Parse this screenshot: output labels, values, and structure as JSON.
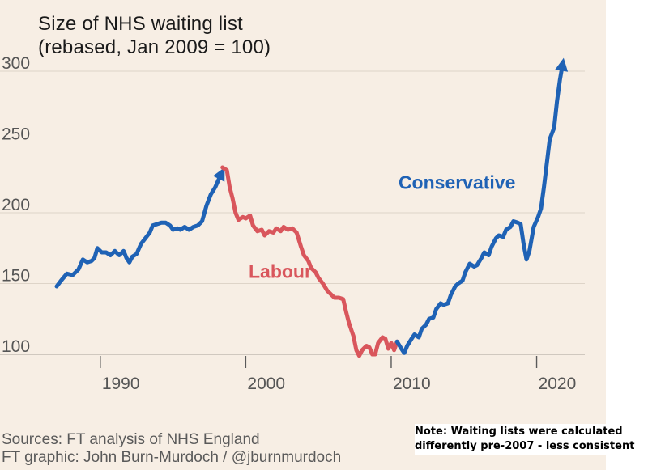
{
  "chart_data": {
    "type": "line",
    "title": "Size of NHS waiting list",
    "subtitle": "(rebased, Jan 2009 = 100)",
    "xlabel": "",
    "ylabel": "",
    "xlim": [
      1986,
      2023.2
    ],
    "ylim": [
      95,
      310
    ],
    "y_ticks": [
      100,
      150,
      200,
      250,
      300
    ],
    "x_ticks": [
      1990,
      2000,
      2010,
      2020
    ],
    "grid": {
      "horizontal": true,
      "vertical": false
    },
    "series": [
      {
        "name": "Conservative",
        "color": "#1f62b5",
        "arrow_at_end": true,
        "points": [
          [
            1987.0,
            148
          ],
          [
            1987.3,
            152
          ],
          [
            1987.7,
            157
          ],
          [
            1988.1,
            156
          ],
          [
            1988.5,
            160
          ],
          [
            1988.8,
            167
          ],
          [
            1989.1,
            165
          ],
          [
            1989.4,
            166
          ],
          [
            1989.6,
            168
          ],
          [
            1989.8,
            175
          ],
          [
            1990.1,
            172
          ],
          [
            1990.4,
            172
          ],
          [
            1990.7,
            170
          ],
          [
            1991.0,
            173
          ],
          [
            1991.3,
            170
          ],
          [
            1991.6,
            173
          ],
          [
            1991.8,
            168
          ],
          [
            1992.0,
            165
          ],
          [
            1992.2,
            169
          ],
          [
            1992.5,
            171
          ],
          [
            1992.8,
            178
          ],
          [
            1993.1,
            182
          ],
          [
            1993.4,
            186
          ],
          [
            1993.6,
            191
          ],
          [
            1993.9,
            192
          ],
          [
            1994.2,
            193
          ],
          [
            1994.5,
            193
          ],
          [
            1994.8,
            191
          ],
          [
            1995.0,
            188
          ],
          [
            1995.3,
            189
          ],
          [
            1995.5,
            188
          ],
          [
            1995.8,
            190
          ],
          [
            1996.1,
            188
          ],
          [
            1996.4,
            190
          ],
          [
            1996.7,
            191
          ],
          [
            1997.0,
            194
          ],
          [
            1997.3,
            205
          ],
          [
            1997.6,
            213
          ],
          [
            1997.9,
            218
          ],
          [
            1998.2,
            225
          ],
          [
            1998.4,
            229
          ]
        ]
      },
      {
        "name": "Labour",
        "color": "#d9565c",
        "points": [
          [
            1998.4,
            232
          ],
          [
            1998.7,
            230
          ],
          [
            1998.9,
            218
          ],
          [
            1999.1,
            210
          ],
          [
            1999.3,
            200
          ],
          [
            1999.5,
            195
          ],
          [
            1999.8,
            197
          ],
          [
            2000.0,
            196
          ],
          [
            2000.3,
            198
          ],
          [
            2000.5,
            191
          ],
          [
            2000.8,
            187
          ],
          [
            2001.1,
            188
          ],
          [
            2001.3,
            184
          ],
          [
            2001.6,
            187
          ],
          [
            2001.9,
            186
          ],
          [
            2002.1,
            189
          ],
          [
            2002.4,
            187
          ],
          [
            2002.6,
            190
          ],
          [
            2002.9,
            188
          ],
          [
            2003.2,
            189
          ],
          [
            2003.5,
            186
          ],
          [
            2003.8,
            176
          ],
          [
            2004.0,
            170
          ],
          [
            2004.3,
            166
          ],
          [
            2004.5,
            161
          ],
          [
            2004.8,
            158
          ],
          [
            2005.0,
            154
          ],
          [
            2005.3,
            150
          ],
          [
            2005.6,
            145
          ],
          [
            2005.9,
            142
          ],
          [
            2006.1,
            140
          ],
          [
            2006.4,
            140
          ],
          [
            2006.7,
            139
          ],
          [
            2006.9,
            130
          ],
          [
            2007.1,
            122
          ],
          [
            2007.4,
            113
          ],
          [
            2007.6,
            103
          ],
          [
            2007.8,
            99
          ],
          [
            2008.0,
            103
          ],
          [
            2008.3,
            106
          ],
          [
            2008.5,
            105
          ],
          [
            2008.7,
            100
          ],
          [
            2008.9,
            100
          ],
          [
            2009.1,
            108
          ],
          [
            2009.4,
            112
          ],
          [
            2009.6,
            111
          ],
          [
            2009.8,
            104
          ],
          [
            2010.0,
            108
          ],
          [
            2010.2,
            103
          ],
          [
            2010.4,
            109
          ]
        ]
      },
      {
        "name": "Conservative",
        "color": "#1f62b5",
        "arrow_at_end": true,
        "points": [
          [
            2010.4,
            109
          ],
          [
            2010.7,
            104
          ],
          [
            2010.9,
            101
          ],
          [
            2011.1,
            106
          ],
          [
            2011.4,
            111
          ],
          [
            2011.6,
            114
          ],
          [
            2011.9,
            112
          ],
          [
            2012.1,
            118
          ],
          [
            2012.4,
            121
          ],
          [
            2012.6,
            125
          ],
          [
            2012.9,
            126
          ],
          [
            2013.1,
            132
          ],
          [
            2013.4,
            136
          ],
          [
            2013.6,
            135
          ],
          [
            2013.9,
            136
          ],
          [
            2014.1,
            142
          ],
          [
            2014.4,
            148
          ],
          [
            2014.6,
            150
          ],
          [
            2014.9,
            152
          ],
          [
            2015.1,
            158
          ],
          [
            2015.4,
            164
          ],
          [
            2015.7,
            162
          ],
          [
            2015.9,
            163
          ],
          [
            2016.2,
            168
          ],
          [
            2016.4,
            172
          ],
          [
            2016.7,
            170
          ],
          [
            2016.9,
            176
          ],
          [
            2017.2,
            182
          ],
          [
            2017.4,
            184
          ],
          [
            2017.7,
            183
          ],
          [
            2017.9,
            188
          ],
          [
            2018.2,
            190
          ],
          [
            2018.4,
            194
          ],
          [
            2018.7,
            193
          ],
          [
            2018.9,
            192
          ],
          [
            2019.1,
            178
          ],
          [
            2019.3,
            167
          ],
          [
            2019.5,
            173
          ],
          [
            2019.8,
            190
          ],
          [
            2020.1,
            197
          ],
          [
            2020.3,
            203
          ],
          [
            2020.5,
            218
          ],
          [
            2020.7,
            235
          ],
          [
            2020.9,
            252
          ],
          [
            2021.2,
            260
          ],
          [
            2021.4,
            279
          ],
          [
            2021.6,
            294
          ],
          [
            2021.8,
            306
          ]
        ]
      }
    ],
    "annotations": [
      {
        "text": "Conservative",
        "color": "#1f62b5",
        "x": 2010.5,
        "y": 217
      },
      {
        "text": "Labour",
        "color": "#d9565c",
        "x": 2000.2,
        "y": 154
      }
    ]
  },
  "sources": {
    "line1": "Sources: FT analysis of NHS England",
    "line2": "FT graphic: John Burn-Murdoch / @jburnmurdoch"
  },
  "note": {
    "line1": "Note: Waiting lists were calculated",
    "line2": "differently pre-2007 - less consistent"
  }
}
